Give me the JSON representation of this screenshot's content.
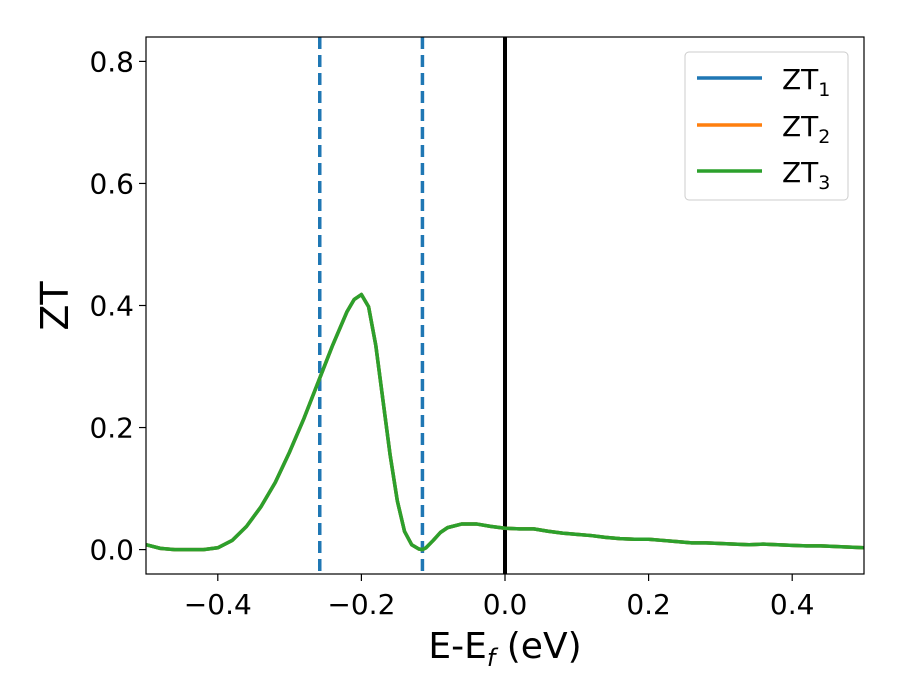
{
  "chart_data": {
    "type": "line",
    "xlabel": {
      "base": "E-E",
      "sub": "f",
      "tail": " (eV)"
    },
    "ylabel": "ZT",
    "xlim": [
      -0.5,
      0.5
    ],
    "ylim": [
      -0.04,
      0.84
    ],
    "xticks": [
      -0.4,
      -0.2,
      0.0,
      0.2,
      0.4
    ],
    "xtick_labels": [
      "−0.4",
      "−0.2",
      "0.0",
      "0.2",
      "0.4"
    ],
    "yticks": [
      0.0,
      0.2,
      0.4,
      0.6,
      0.8
    ],
    "ytick_labels": [
      "0.0",
      "0.2",
      "0.4",
      "0.6",
      "0.8"
    ],
    "grid": false,
    "legend_position": "top-right",
    "vertical_lines": [
      {
        "x": -0.258,
        "style": "dashed",
        "color": "#1f77b4"
      },
      {
        "x": -0.115,
        "style": "dashed",
        "color": "#1f77b4"
      },
      {
        "x": 0.0,
        "style": "solid",
        "color": "#000000"
      }
    ],
    "x": [
      -0.5,
      -0.48,
      -0.46,
      -0.44,
      -0.42,
      -0.4,
      -0.38,
      -0.36,
      -0.34,
      -0.32,
      -0.3,
      -0.28,
      -0.26,
      -0.24,
      -0.22,
      -0.21,
      -0.2,
      -0.19,
      -0.18,
      -0.17,
      -0.16,
      -0.15,
      -0.14,
      -0.13,
      -0.12,
      -0.115,
      -0.11,
      -0.1,
      -0.09,
      -0.08,
      -0.06,
      -0.04,
      -0.02,
      0.0,
      0.02,
      0.04,
      0.06,
      0.08,
      0.1,
      0.12,
      0.14,
      0.16,
      0.18,
      0.2,
      0.22,
      0.24,
      0.26,
      0.28,
      0.3,
      0.32,
      0.34,
      0.36,
      0.38,
      0.4,
      0.42,
      0.44,
      0.46,
      0.48,
      0.5
    ],
    "series": [
      {
        "name": "ZT_1",
        "label_base": "ZT",
        "label_sub": "1",
        "color": "#1f77b4",
        "values": [
          0.008,
          0.002,
          0.0,
          0.0,
          0.0,
          0.003,
          0.015,
          0.038,
          0.07,
          0.11,
          0.16,
          0.215,
          0.275,
          0.335,
          0.39,
          0.41,
          0.418,
          0.398,
          0.335,
          0.245,
          0.155,
          0.08,
          0.03,
          0.008,
          0.001,
          0.0,
          0.003,
          0.015,
          0.028,
          0.036,
          0.042,
          0.042,
          0.038,
          0.035,
          0.034,
          0.034,
          0.03,
          0.027,
          0.025,
          0.023,
          0.02,
          0.018,
          0.017,
          0.017,
          0.015,
          0.013,
          0.011,
          0.011,
          0.01,
          0.009,
          0.008,
          0.009,
          0.008,
          0.007,
          0.006,
          0.006,
          0.005,
          0.004,
          0.003
        ]
      },
      {
        "name": "ZT_2",
        "label_base": "ZT",
        "label_sub": "2",
        "color": "#ff7f0e",
        "values": [
          0.008,
          0.002,
          0.0,
          0.0,
          0.0,
          0.003,
          0.015,
          0.038,
          0.07,
          0.11,
          0.16,
          0.215,
          0.275,
          0.335,
          0.39,
          0.41,
          0.418,
          0.398,
          0.335,
          0.245,
          0.155,
          0.08,
          0.03,
          0.008,
          0.001,
          0.0,
          0.003,
          0.015,
          0.028,
          0.036,
          0.042,
          0.042,
          0.038,
          0.035,
          0.034,
          0.034,
          0.03,
          0.027,
          0.025,
          0.023,
          0.02,
          0.018,
          0.017,
          0.017,
          0.015,
          0.013,
          0.011,
          0.011,
          0.01,
          0.009,
          0.008,
          0.009,
          0.008,
          0.007,
          0.006,
          0.006,
          0.005,
          0.004,
          0.003
        ]
      },
      {
        "name": "ZT_3",
        "label_base": "ZT",
        "label_sub": "3",
        "color": "#2ca02c",
        "values": [
          0.008,
          0.002,
          0.0,
          0.0,
          0.0,
          0.003,
          0.015,
          0.038,
          0.07,
          0.11,
          0.16,
          0.215,
          0.275,
          0.335,
          0.39,
          0.41,
          0.418,
          0.398,
          0.335,
          0.245,
          0.155,
          0.08,
          0.03,
          0.008,
          0.001,
          0.0,
          0.003,
          0.015,
          0.028,
          0.036,
          0.042,
          0.042,
          0.038,
          0.035,
          0.034,
          0.034,
          0.03,
          0.027,
          0.025,
          0.023,
          0.02,
          0.018,
          0.017,
          0.017,
          0.015,
          0.013,
          0.011,
          0.011,
          0.01,
          0.009,
          0.008,
          0.009,
          0.008,
          0.007,
          0.006,
          0.006,
          0.005,
          0.004,
          0.003
        ]
      }
    ]
  }
}
